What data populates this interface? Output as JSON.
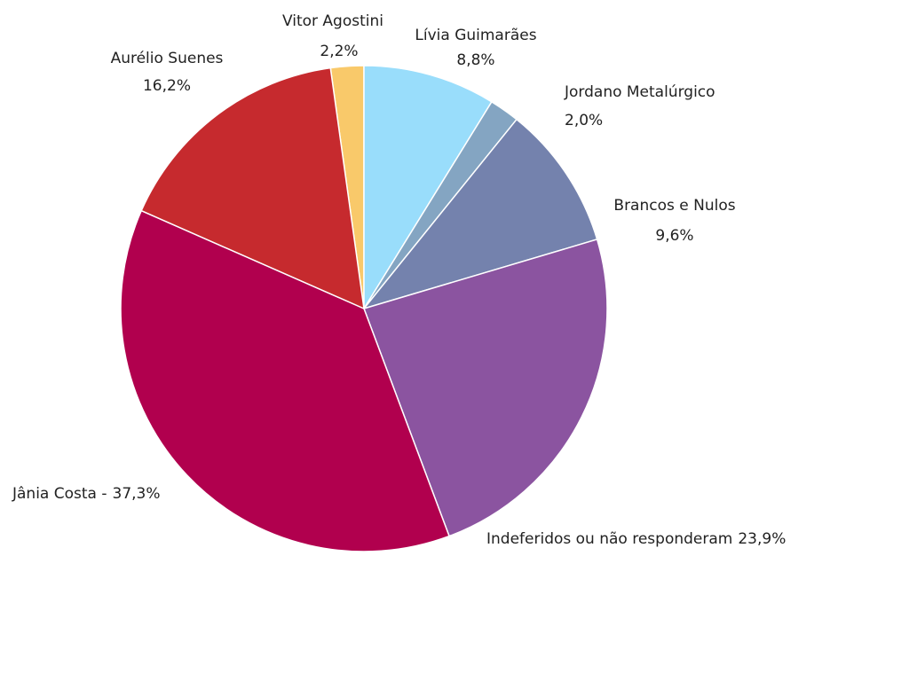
{
  "chart_data": {
    "type": "pie",
    "categories": [
      "Vitor Agostini",
      "Lívia Guimarães",
      "Jordano Metalúrgico",
      "Brancos e Nulos",
      "Indeferidos ou não responderam",
      "Jânia Costa -",
      "Aurélio Suenes"
    ],
    "values": [
      2.2,
      8.8,
      2.0,
      9.6,
      23.9,
      37.3,
      16.2
    ],
    "value_labels": [
      "2,2%",
      "8,8%",
      "2,0%",
      "9,6%",
      "23,9%",
      "37,3%",
      "16,2%"
    ],
    "colors": [
      "#f9c96a",
      "#99ddfb",
      "#84a5c2",
      "#7482ad",
      "#8b54a0",
      "#b1004e",
      "#c62a2e"
    ]
  }
}
